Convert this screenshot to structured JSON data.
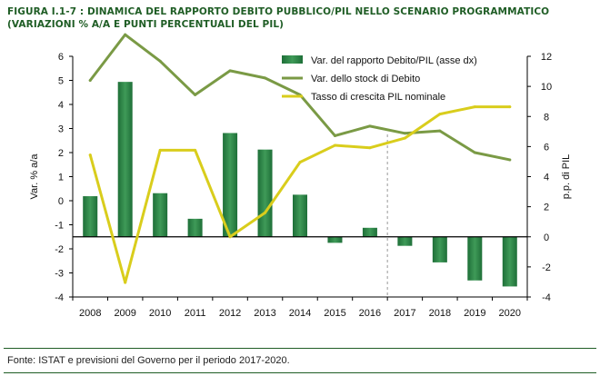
{
  "title": {
    "line1": "FIGURA I.1-7 : DINAMICA DEL RAPPORTO DEBITO PUBBLICO/PIL NELLO SCENARIO PROGRAMMATICO",
    "line2": "(VARIAZIONI % A/A E PUNTI PERCENTUALI DEL PIL)"
  },
  "source": "Fonte: ISTAT e previsioni del Governo per il periodo 2017-2020.",
  "colors": {
    "bar": "#1e6f38",
    "bar_light": "#3f9a58",
    "stock_line": "#7a9a45",
    "gdp_line": "#d9cd1c",
    "title": "#1f5d25",
    "separator": "#999999"
  },
  "chart_data": {
    "type": "bar",
    "categories": [
      "2008",
      "2009",
      "2010",
      "2011",
      "2012",
      "2013",
      "2014",
      "2015",
      "2016",
      "2017",
      "2018",
      "2019",
      "2020"
    ],
    "ylabel_left": "Var. % a/a",
    "ylabel_right": "p.p. di PIL",
    "ylim_left": [
      -4,
      6
    ],
    "ylim_right": [
      -4,
      12
    ],
    "yticks_left": [
      "-4",
      "-3",
      "-2",
      "-1",
      "0",
      "1",
      "2",
      "3",
      "4",
      "5",
      "6"
    ],
    "yticks_right": [
      "-4",
      "-2",
      "0",
      "2",
      "4",
      "6",
      "8",
      "10",
      "12"
    ],
    "forecast_start": "2017",
    "legend_position": "top-right",
    "series": [
      {
        "name": "Var. del rapporto Debito/PIL (asse dx)",
        "type": "bar",
        "axis": "right",
        "values": [
          2.7,
          10.3,
          2.9,
          1.2,
          6.9,
          5.8,
          2.8,
          -0.4,
          0.6,
          -0.6,
          -1.7,
          -2.9,
          -3.3
        ]
      },
      {
        "name": "Var. dello stock di Debito",
        "type": "line",
        "axis": "left",
        "values": [
          5.0,
          6.9,
          5.8,
          4.4,
          5.4,
          5.1,
          4.4,
          2.7,
          3.1,
          2.8,
          2.9,
          2.0,
          1.7
        ]
      },
      {
        "name": "Tasso di crescita PIL nominale",
        "type": "line",
        "axis": "left",
        "values": [
          1.9,
          -3.4,
          2.1,
          2.1,
          -1.5,
          -0.5,
          1.6,
          2.3,
          2.2,
          2.6,
          3.6,
          3.9,
          3.9
        ]
      }
    ]
  }
}
